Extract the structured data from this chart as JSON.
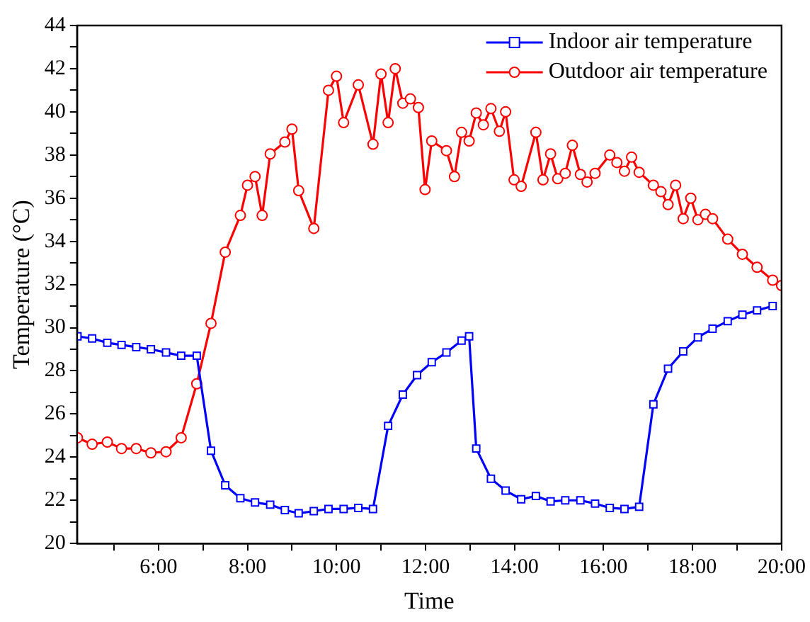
{
  "chart_data": {
    "type": "line",
    "xlabel": "Time",
    "ylabel": "Temperature (°C)",
    "xlim": [
      4.17,
      20
    ],
    "ylim": [
      20,
      44
    ],
    "xticks": [
      {
        "value": 5,
        "label": null
      },
      {
        "value": 6,
        "label": "6:00"
      },
      {
        "value": 7,
        "label": null
      },
      {
        "value": 8,
        "label": "8:00"
      },
      {
        "value": 9,
        "label": null
      },
      {
        "value": 10,
        "label": "10:00"
      },
      {
        "value": 11,
        "label": null
      },
      {
        "value": 12,
        "label": "12:00"
      },
      {
        "value": 13,
        "label": null
      },
      {
        "value": 14,
        "label": "14:00"
      },
      {
        "value": 15,
        "label": null
      },
      {
        "value": 16,
        "label": "16:00"
      },
      {
        "value": 17,
        "label": null
      },
      {
        "value": 18,
        "label": "18:00"
      },
      {
        "value": 19,
        "label": null
      },
      {
        "value": 20,
        "label": "20:00"
      }
    ],
    "yticks": [
      20,
      {
        "value": 21,
        "label": null
      },
      22,
      {
        "value": 23,
        "label": null
      },
      24,
      {
        "value": 25,
        "label": null
      },
      26,
      {
        "value": 27,
        "label": null
      },
      28,
      {
        "value": 29,
        "label": null
      },
      30,
      {
        "value": 31,
        "label": null
      },
      32,
      {
        "value": 33,
        "label": null
      },
      34,
      {
        "value": 35,
        "label": null
      },
      36,
      {
        "value": 37,
        "label": null
      },
      38,
      {
        "value": 39,
        "label": null
      },
      40,
      {
        "value": 41,
        "label": null
      },
      42,
      {
        "value": 43,
        "label": null
      },
      44
    ],
    "grid": false,
    "legend": "top right",
    "line_style": "solid",
    "series": [
      {
        "name": "Indoor air temperature",
        "color": "#0000ff",
        "marker": "square",
        "x": [
          4.18,
          4.51,
          4.85,
          5.17,
          5.5,
          5.83,
          6.17,
          6.51,
          6.86,
          7.18,
          7.5,
          7.84,
          8.17,
          8.51,
          8.84,
          9.15,
          9.49,
          9.82,
          10.16,
          10.49,
          10.82,
          11.16,
          11.49,
          11.81,
          12.14,
          12.47,
          12.81,
          12.98,
          13.14,
          13.47,
          13.8,
          14.15,
          14.48,
          14.81,
          15.14,
          15.48,
          15.81,
          16.14,
          16.47,
          16.8,
          17.12,
          17.45,
          17.79,
          18.12,
          18.45,
          18.79,
          19.12,
          19.45,
          19.8
        ],
        "values": [
          29.6,
          29.5,
          29.3,
          29.2,
          29.1,
          29.0,
          28.85,
          28.7,
          28.7,
          24.3,
          22.7,
          22.1,
          21.9,
          21.8,
          21.55,
          21.4,
          21.5,
          21.6,
          21.6,
          21.65,
          21.6,
          25.45,
          26.9,
          27.8,
          28.4,
          28.85,
          29.4,
          29.6,
          24.4,
          23.0,
          22.45,
          22.05,
          22.2,
          21.95,
          22.0,
          22.0,
          21.85,
          21.65,
          21.6,
          21.7,
          26.45,
          28.1,
          28.9,
          29.55,
          29.95,
          30.3,
          30.6,
          30.8,
          31.0
        ]
      },
      {
        "name": "Outdoor air temperature",
        "color": "#ff0000",
        "marker": "circle",
        "x": [
          4.18,
          4.51,
          4.85,
          5.17,
          5.5,
          5.83,
          6.17,
          6.51,
          6.86,
          7.18,
          7.5,
          7.84,
          8.0,
          8.17,
          8.33,
          8.51,
          8.84,
          9.0,
          9.15,
          9.49,
          9.82,
          10.0,
          10.16,
          10.49,
          10.82,
          11.0,
          11.16,
          11.32,
          11.49,
          11.66,
          11.84,
          11.99,
          12.14,
          12.47,
          12.65,
          12.81,
          12.98,
          13.14,
          13.3,
          13.47,
          13.66,
          13.8,
          13.99,
          14.15,
          14.48,
          14.64,
          14.81,
          14.97,
          15.14,
          15.3,
          15.48,
          15.63,
          15.81,
          16.14,
          16.3,
          16.47,
          16.63,
          16.8,
          17.12,
          17.29,
          17.45,
          17.62,
          17.79,
          17.96,
          18.12,
          18.29,
          18.45,
          18.79,
          19.12,
          19.45,
          19.8,
          20.0
        ],
        "values": [
          24.9,
          24.6,
          24.7,
          24.4,
          24.4,
          24.2,
          24.25,
          24.9,
          27.4,
          30.2,
          33.5,
          35.2,
          36.6,
          37.0,
          35.2,
          38.05,
          38.6,
          39.2,
          36.35,
          34.6,
          41.0,
          41.65,
          39.5,
          41.25,
          38.5,
          41.75,
          39.5,
          42.0,
          40.4,
          40.6,
          40.2,
          36.4,
          38.65,
          38.2,
          37.0,
          39.05,
          38.65,
          39.95,
          39.4,
          40.15,
          39.1,
          40.0,
          36.85,
          36.55,
          39.05,
          36.85,
          38.05,
          36.9,
          37.15,
          38.45,
          37.1,
          36.75,
          37.15,
          38.0,
          37.65,
          37.25,
          37.9,
          37.2,
          36.6,
          36.3,
          35.7,
          36.6,
          35.05,
          36.0,
          35.0,
          35.25,
          35.05,
          34.1,
          33.4,
          32.8,
          32.2,
          31.95
        ]
      }
    ]
  }
}
